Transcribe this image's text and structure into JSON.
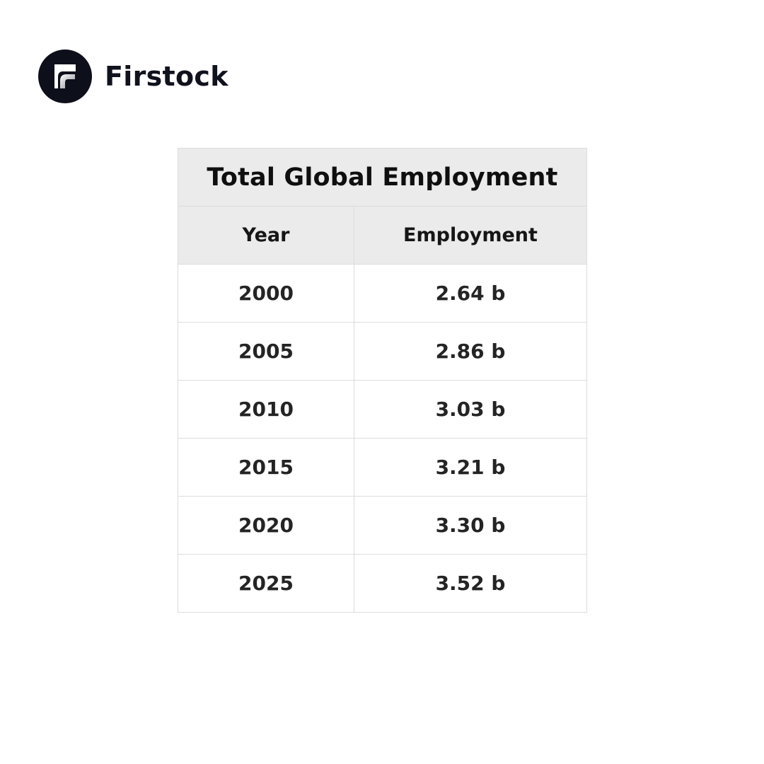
{
  "brand": {
    "name": "Firstock",
    "logo_icon": "firstock-logo-icon",
    "logo_bg": "#0d0f1a"
  },
  "chart_data": {
    "type": "table",
    "title": "Total Global Employment",
    "columns": [
      "Year",
      "Employment"
    ],
    "rows": [
      [
        "2000",
        "2.64 b"
      ],
      [
        "2005",
        "2.86 b"
      ],
      [
        "2010",
        "3.03 b"
      ],
      [
        "2015",
        "3.21 b"
      ],
      [
        "2020",
        "3.30 b"
      ],
      [
        "2025",
        "3.52 b"
      ]
    ],
    "header_bg": "#ebebeb",
    "border_color": "#dcdcdc"
  }
}
